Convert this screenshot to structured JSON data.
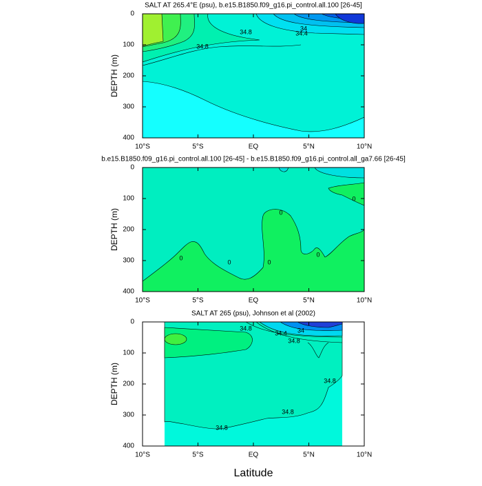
{
  "chart_data": [
    {
      "type": "contour",
      "title": "SALT AT 265.4°E (psu), b.e15.B1850.f09_g16.pi_control.all.100 [26-45]",
      "ylabel": "DEPTH (m)",
      "xlim": [
        -10,
        10
      ],
      "ylim": [
        0,
        400
      ],
      "y_reversed": true,
      "xticks": [
        {
          "value": -10,
          "label": "10°S"
        },
        {
          "value": -5,
          "label": "5°S"
        },
        {
          "value": 0,
          "label": "EQ"
        },
        {
          "value": 5,
          "label": "5°N"
        },
        {
          "value": 10,
          "label": "10°N"
        }
      ],
      "yticks": [
        0,
        100,
        200,
        300,
        400
      ],
      "contour_labels": [
        34.8,
        34.8,
        34,
        34.4
      ]
    },
    {
      "type": "contour",
      "title": "b.e15.B1850.f09_g16.pi_control.all.100 [26-45] - b.e15.B1850.f09_g16.pi_control.all_ga7.66 [26-45]",
      "ylabel": "DEPTH (m)",
      "xlim": [
        -10,
        10
      ],
      "ylim": [
        0,
        400
      ],
      "y_reversed": true,
      "xticks": [
        {
          "value": -10,
          "label": "10°S"
        },
        {
          "value": -5,
          "label": "5°S"
        },
        {
          "value": 0,
          "label": "EQ"
        },
        {
          "value": 5,
          "label": "5°N"
        },
        {
          "value": 10,
          "label": "10°N"
        }
      ],
      "yticks": [
        0,
        100,
        200,
        300,
        400
      ],
      "contour_labels": [
        0,
        0,
        0,
        0,
        0,
        0
      ]
    },
    {
      "type": "contour",
      "title": "SALT AT 265 (psu), Johnson et al (2002)",
      "ylabel": "DEPTH (m)",
      "xlabel": "Latitude",
      "xlim": [
        -10,
        10
      ],
      "ylim": [
        0,
        400
      ],
      "y_reversed": true,
      "xticks": [
        {
          "value": -10,
          "label": "10°S"
        },
        {
          "value": -5,
          "label": "5°S"
        },
        {
          "value": 0,
          "label": "EQ"
        },
        {
          "value": 5,
          "label": "5°N"
        },
        {
          "value": 10,
          "label": "10°N"
        }
      ],
      "yticks": [
        0,
        100,
        200,
        300,
        400
      ],
      "contour_labels": [
        34.8,
        34,
        34.4,
        34.8,
        34.8,
        34.8,
        34.8
      ]
    }
  ]
}
